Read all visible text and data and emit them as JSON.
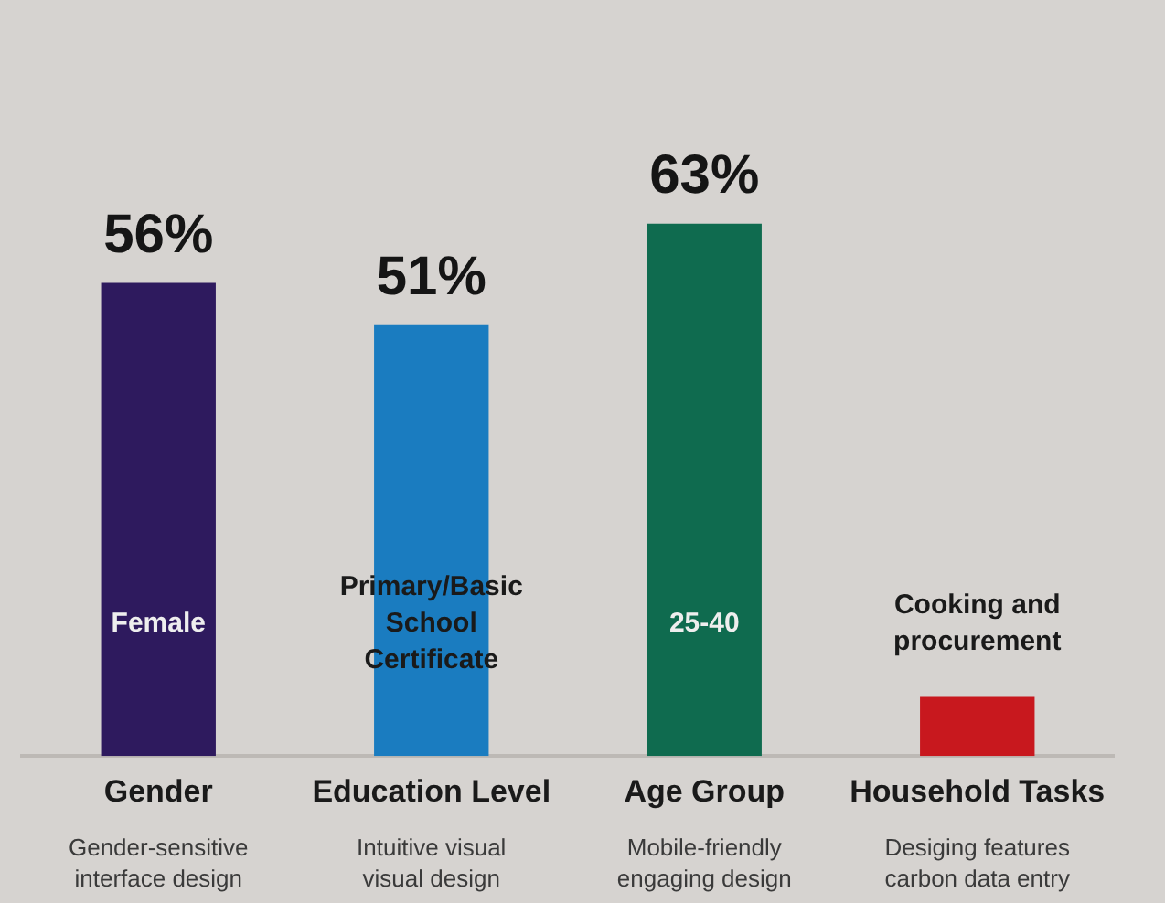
{
  "chart_data": {
    "type": "bar",
    "categories": [
      "Gender",
      "Education Level",
      "Age Group",
      "Household Tasks"
    ],
    "values": [
      56,
      51,
      63,
      7
    ],
    "colors": [
      "#2e1a5e",
      "#1a7cc0",
      "#0f6b4f",
      "#c8181e"
    ],
    "value_labels": [
      "56%",
      "51%",
      "63%",
      null
    ],
    "tick_labels": "x",
    "grid": false,
    "legend": false,
    "annotations": [
      "Female",
      "Primary/Basic\nSchool\nCertificate",
      "25-40",
      "Cooking and\nprocurement",
      "Gender-sensitive\ninterface design",
      "Intuitive visual\nvisual design",
      "Mobile-friendly\nengaging design",
      "Desiging features\ncarbon data entry"
    ]
  }
}
